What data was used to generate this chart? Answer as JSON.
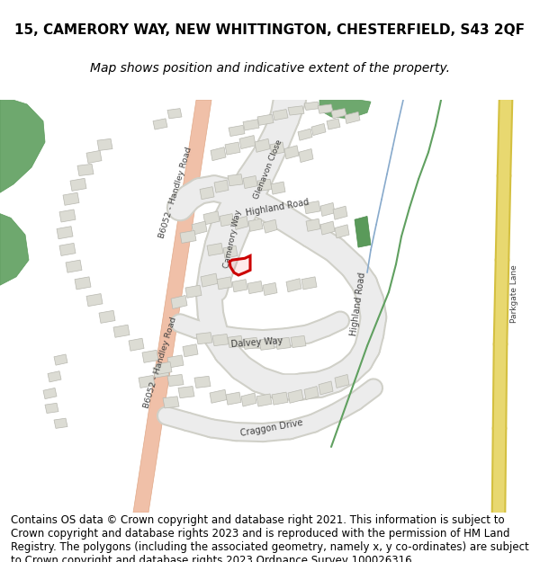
{
  "title_line1": "15, CAMERORY WAY, NEW WHITTINGTON, CHESTERFIELD, S43 2QF",
  "title_line2": "Map shows position and indicative extent of the property.",
  "footer": "Contains OS data © Crown copyright and database right 2021. This information is subject to Crown copyright and database rights 2023 and is reproduced with the permission of HM Land Registry. The polygons (including the associated geometry, namely x, y co-ordinates) are subject to Crown copyright and database rights 2023 Ordnance Survey 100026316.",
  "title_fontsize": 11,
  "subtitle_fontsize": 10,
  "footer_fontsize": 8.5,
  "bg_color": "#ffffff",
  "map_bg": "#f8f8f5",
  "road_color_main_fill": "#f0c0a8",
  "road_color_main_edge": "#e0a888",
  "road_grey_fill": "#ececec",
  "road_grey_edge": "#d0d0c8",
  "green_area_color": "#6ea86e",
  "green_dark": "#5a9a5a",
  "building_color": "#dcdcd4",
  "building_edge": "#b8b8b0",
  "highlight_fill": "#ff000020",
  "highlight_edge": "#cc0000",
  "road_label_color": "#404040",
  "yellow_road_fill": "#e8d870",
  "yellow_road_edge": "#d4c040",
  "green_line_color": "#60a060"
}
